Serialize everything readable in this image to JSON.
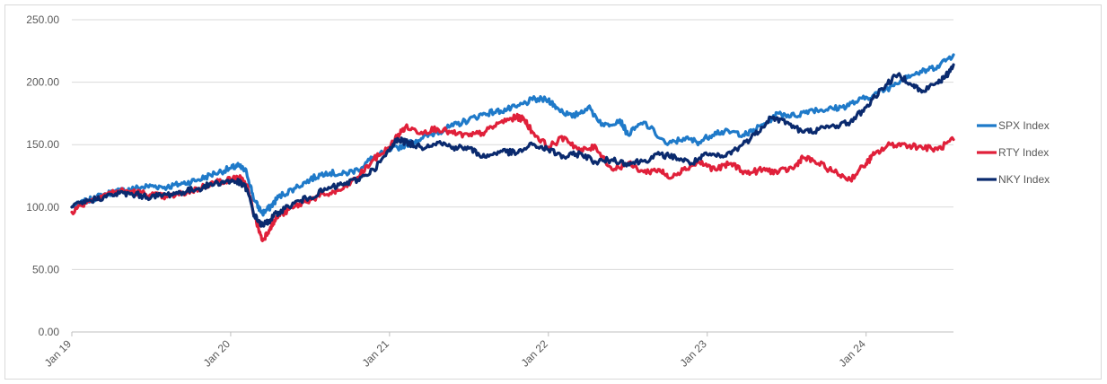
{
  "chart_data": {
    "type": "line",
    "title": "",
    "xlabel": "",
    "ylabel": "",
    "ylim": [
      0,
      250
    ],
    "y_ticks": [
      "0.00",
      "50.00",
      "100.00",
      "150.00",
      "200.00",
      "250.00"
    ],
    "x_ticks": [
      "Jan 19",
      "Jan 20",
      "Jan 21",
      "Jan 22",
      "Jan 23",
      "Jan 24"
    ],
    "grid": "horizontal",
    "legend_position": "right",
    "x_unit": "years since Jan 2019",
    "series": [
      {
        "name": "SPX Index",
        "color": "#1f7ac9",
        "points": [
          [
            0.0,
            100
          ],
          [
            0.1,
            105
          ],
          [
            0.2,
            110
          ],
          [
            0.3,
            113
          ],
          [
            0.4,
            115
          ],
          [
            0.5,
            117
          ],
          [
            0.6,
            116
          ],
          [
            0.7,
            119
          ],
          [
            0.8,
            122
          ],
          [
            0.9,
            127
          ],
          [
            1.0,
            131
          ],
          [
            1.05,
            133
          ],
          [
            1.1,
            128
          ],
          [
            1.15,
            105
          ],
          [
            1.2,
            95
          ],
          [
            1.25,
            100
          ],
          [
            1.3,
            108
          ],
          [
            1.4,
            115
          ],
          [
            1.5,
            122
          ],
          [
            1.6,
            128
          ],
          [
            1.7,
            126
          ],
          [
            1.8,
            130
          ],
          [
            1.9,
            140
          ],
          [
            2.0,
            145
          ],
          [
            2.1,
            150
          ],
          [
            2.2,
            155
          ],
          [
            2.3,
            160
          ],
          [
            2.4,
            165
          ],
          [
            2.5,
            170
          ],
          [
            2.6,
            175
          ],
          [
            2.7,
            177
          ],
          [
            2.8,
            180
          ],
          [
            2.9,
            186
          ],
          [
            3.0,
            186
          ],
          [
            3.05,
            180
          ],
          [
            3.15,
            172
          ],
          [
            3.25,
            180
          ],
          [
            3.35,
            165
          ],
          [
            3.45,
            170
          ],
          [
            3.5,
            158
          ],
          [
            3.6,
            168
          ],
          [
            3.75,
            150
          ],
          [
            3.85,
            155
          ],
          [
            3.95,
            152
          ],
          [
            4.05,
            160
          ],
          [
            4.15,
            160
          ],
          [
            4.25,
            158
          ],
          [
            4.35,
            166
          ],
          [
            4.45,
            175
          ],
          [
            4.55,
            173
          ],
          [
            4.65,
            178
          ],
          [
            4.75,
            178
          ],
          [
            4.85,
            180
          ],
          [
            4.95,
            185
          ],
          [
            5.05,
            190
          ],
          [
            5.15,
            196
          ],
          [
            5.25,
            205
          ],
          [
            5.35,
            208
          ],
          [
            5.45,
            213
          ],
          [
            5.55,
            222
          ]
        ]
      },
      {
        "name": "RTY Index",
        "color": "#e0203a",
        "points": [
          [
            0.0,
            96
          ],
          [
            0.1,
            105
          ],
          [
            0.2,
            110
          ],
          [
            0.3,
            113
          ],
          [
            0.4,
            112
          ],
          [
            0.5,
            110
          ],
          [
            0.6,
            108
          ],
          [
            0.7,
            111
          ],
          [
            0.8,
            115
          ],
          [
            0.9,
            120
          ],
          [
            1.0,
            122
          ],
          [
            1.05,
            124
          ],
          [
            1.1,
            118
          ],
          [
            1.15,
            93
          ],
          [
            1.2,
            73
          ],
          [
            1.25,
            84
          ],
          [
            1.3,
            93
          ],
          [
            1.4,
            100
          ],
          [
            1.5,
            106
          ],
          [
            1.6,
            110
          ],
          [
            1.7,
            114
          ],
          [
            1.8,
            124
          ],
          [
            1.9,
            138
          ],
          [
            2.0,
            148
          ],
          [
            2.05,
            157
          ],
          [
            2.1,
            164
          ],
          [
            2.2,
            160
          ],
          [
            2.3,
            163
          ],
          [
            2.4,
            159
          ],
          [
            2.5,
            157
          ],
          [
            2.6,
            160
          ],
          [
            2.7,
            168
          ],
          [
            2.8,
            172
          ],
          [
            2.85,
            170
          ],
          [
            2.9,
            160
          ],
          [
            3.0,
            148
          ],
          [
            3.1,
            156
          ],
          [
            3.2,
            145
          ],
          [
            3.3,
            148
          ],
          [
            3.4,
            130
          ],
          [
            3.5,
            135
          ],
          [
            3.6,
            128
          ],
          [
            3.7,
            130
          ],
          [
            3.75,
            124
          ],
          [
            3.85,
            130
          ],
          [
            3.95,
            136
          ],
          [
            4.05,
            130
          ],
          [
            4.15,
            135
          ],
          [
            4.25,
            127
          ],
          [
            4.35,
            130
          ],
          [
            4.45,
            128
          ],
          [
            4.55,
            132
          ],
          [
            4.6,
            140
          ],
          [
            4.7,
            135
          ],
          [
            4.8,
            128
          ],
          [
            4.9,
            122
          ],
          [
            5.0,
            135
          ],
          [
            5.05,
            142
          ],
          [
            5.15,
            150
          ],
          [
            5.25,
            150
          ],
          [
            5.35,
            148
          ],
          [
            5.45,
            146
          ],
          [
            5.55,
            154
          ]
        ]
      },
      {
        "name": "NKY Index",
        "color": "#0a2a6e",
        "points": [
          [
            0.0,
            100
          ],
          [
            0.1,
            105
          ],
          [
            0.2,
            108
          ],
          [
            0.3,
            111
          ],
          [
            0.4,
            110
          ],
          [
            0.5,
            108
          ],
          [
            0.6,
            110
          ],
          [
            0.7,
            112
          ],
          [
            0.8,
            115
          ],
          [
            0.9,
            119
          ],
          [
            1.0,
            121
          ],
          [
            1.05,
            120
          ],
          [
            1.1,
            115
          ],
          [
            1.15,
            93
          ],
          [
            1.2,
            85
          ],
          [
            1.25,
            90
          ],
          [
            1.3,
            96
          ],
          [
            1.4,
            103
          ],
          [
            1.5,
            108
          ],
          [
            1.6,
            114
          ],
          [
            1.7,
            118
          ],
          [
            1.8,
            122
          ],
          [
            1.9,
            130
          ],
          [
            2.0,
            145
          ],
          [
            2.05,
            155
          ],
          [
            2.1,
            152
          ],
          [
            2.2,
            148
          ],
          [
            2.3,
            152
          ],
          [
            2.4,
            148
          ],
          [
            2.5,
            147
          ],
          [
            2.6,
            140
          ],
          [
            2.7,
            145
          ],
          [
            2.8,
            143
          ],
          [
            2.9,
            150
          ],
          [
            3.0,
            146
          ],
          [
            3.1,
            140
          ],
          [
            3.2,
            143
          ],
          [
            3.3,
            136
          ],
          [
            3.4,
            138
          ],
          [
            3.5,
            135
          ],
          [
            3.6,
            137
          ],
          [
            3.7,
            142
          ],
          [
            3.8,
            140
          ],
          [
            3.9,
            135
          ],
          [
            4.0,
            142
          ],
          [
            4.1,
            140
          ],
          [
            4.2,
            148
          ],
          [
            4.3,
            158
          ],
          [
            4.4,
            172
          ],
          [
            4.5,
            168
          ],
          [
            4.6,
            160
          ],
          [
            4.7,
            162
          ],
          [
            4.8,
            165
          ],
          [
            4.9,
            168
          ],
          [
            5.0,
            180
          ],
          [
            5.1,
            195
          ],
          [
            5.2,
            206
          ],
          [
            5.3,
            198
          ],
          [
            5.35,
            192
          ],
          [
            5.45,
            200
          ],
          [
            5.5,
            204
          ],
          [
            5.55,
            214
          ]
        ]
      }
    ]
  }
}
